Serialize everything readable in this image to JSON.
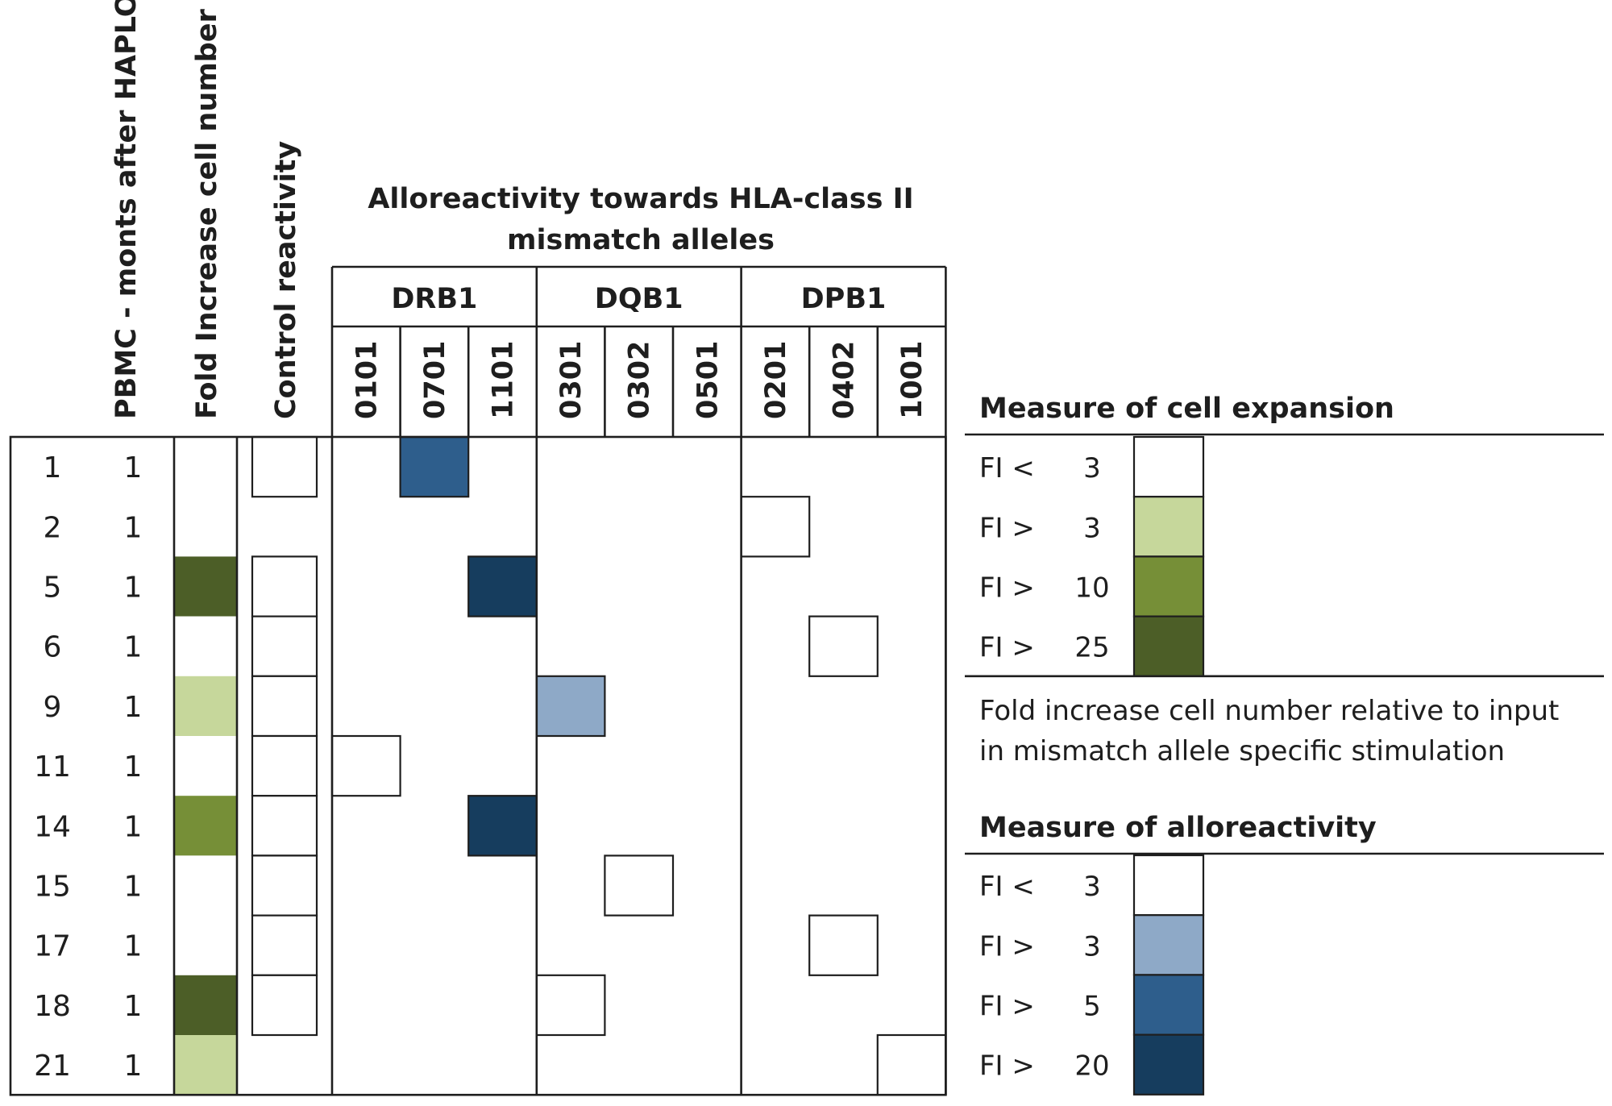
{
  "chart_data": {
    "type": "table",
    "title": "Alloreactivity towards HLA-class II mismatch alleles",
    "title_lines": [
      "Alloreactivity towards HLA-class II",
      "mismatch alleles"
    ],
    "row_headers": [
      "PBMC  - monts after HAPLO",
      "Fold Increase cell number",
      "Control reactivity"
    ],
    "loci": [
      {
        "name": "DRB1",
        "alleles": [
          "0101",
          "0701",
          "1101"
        ]
      },
      {
        "name": "DQB1",
        "alleles": [
          "0301",
          "0302",
          "0501"
        ]
      },
      {
        "name": "DPB1",
        "alleles": [
          "0201",
          "0402",
          "1001"
        ]
      }
    ],
    "rows": [
      {
        "id": "1",
        "months": "1",
        "fold_increase": "<3",
        "control": "<3",
        "allele": "0701",
        "alloreactivity": ">5"
      },
      {
        "id": "2",
        "months": "1",
        "fold_increase": "<3",
        "control": null,
        "allele": "0201",
        "alloreactivity": "<3"
      },
      {
        "id": "5",
        "months": "1",
        "fold_increase": ">25",
        "control": "<3",
        "allele": "1101",
        "alloreactivity": ">20"
      },
      {
        "id": "6",
        "months": "1",
        "fold_increase": "<3",
        "control": "<3",
        "allele": "0402",
        "alloreactivity": "<3"
      },
      {
        "id": "9",
        "months": "1",
        "fold_increase": ">3",
        "control": "<3",
        "allele": "0301",
        "alloreactivity": ">3"
      },
      {
        "id": "11",
        "months": "1",
        "fold_increase": "<3",
        "control": "<3",
        "allele": "0101",
        "alloreactivity": "<3"
      },
      {
        "id": "14",
        "months": "1",
        "fold_increase": ">10",
        "control": "<3",
        "allele": "1101",
        "alloreactivity": ">20"
      },
      {
        "id": "15",
        "months": "1",
        "fold_increase": "<3",
        "control": "<3",
        "allele": "0302",
        "alloreactivity": "<3"
      },
      {
        "id": "17",
        "months": "1",
        "fold_increase": "<3",
        "control": "<3",
        "allele": "0402",
        "alloreactivity": "<3"
      },
      {
        "id": "18",
        "months": "1",
        "fold_increase": ">25",
        "control": "<3",
        "allele": "0301",
        "alloreactivity": "<3"
      },
      {
        "id": "21",
        "months": "1",
        "fold_increase": ">3",
        "control": null,
        "allele": "1001",
        "alloreactivity": "<3"
      }
    ],
    "legend_expansion": {
      "title": "Measure of cell expansion",
      "items": [
        {
          "op": "FI <",
          "value": "3",
          "key": "<3",
          "color": "#ffffff"
        },
        {
          "op": "FI >",
          "value": "3",
          "key": ">3",
          "color": "#c6d79b"
        },
        {
          "op": "FI >",
          "value": "10",
          "key": ">10",
          "color": "#768f37"
        },
        {
          "op": "FI >",
          "value": "25",
          "key": ">25",
          "color": "#4c5e27"
        }
      ],
      "note_lines": [
        "Fold increase cell number relative to input",
        "in mismatch allele specific stimulation"
      ]
    },
    "legend_alloreactivity": {
      "title": "Measure of alloreactivity",
      "items": [
        {
          "op": "FI <",
          "value": "3",
          "key": "<3",
          "color": "#ffffff"
        },
        {
          "op": "FI >",
          "value": "3",
          "key": ">3",
          "color": "#8ea9c7"
        },
        {
          "op": "FI >",
          "value": "5",
          "key": ">5",
          "color": "#2e5e8c"
        },
        {
          "op": "FI >",
          "value": "20",
          "key": ">20",
          "color": "#163d5e"
        }
      ]
    }
  }
}
